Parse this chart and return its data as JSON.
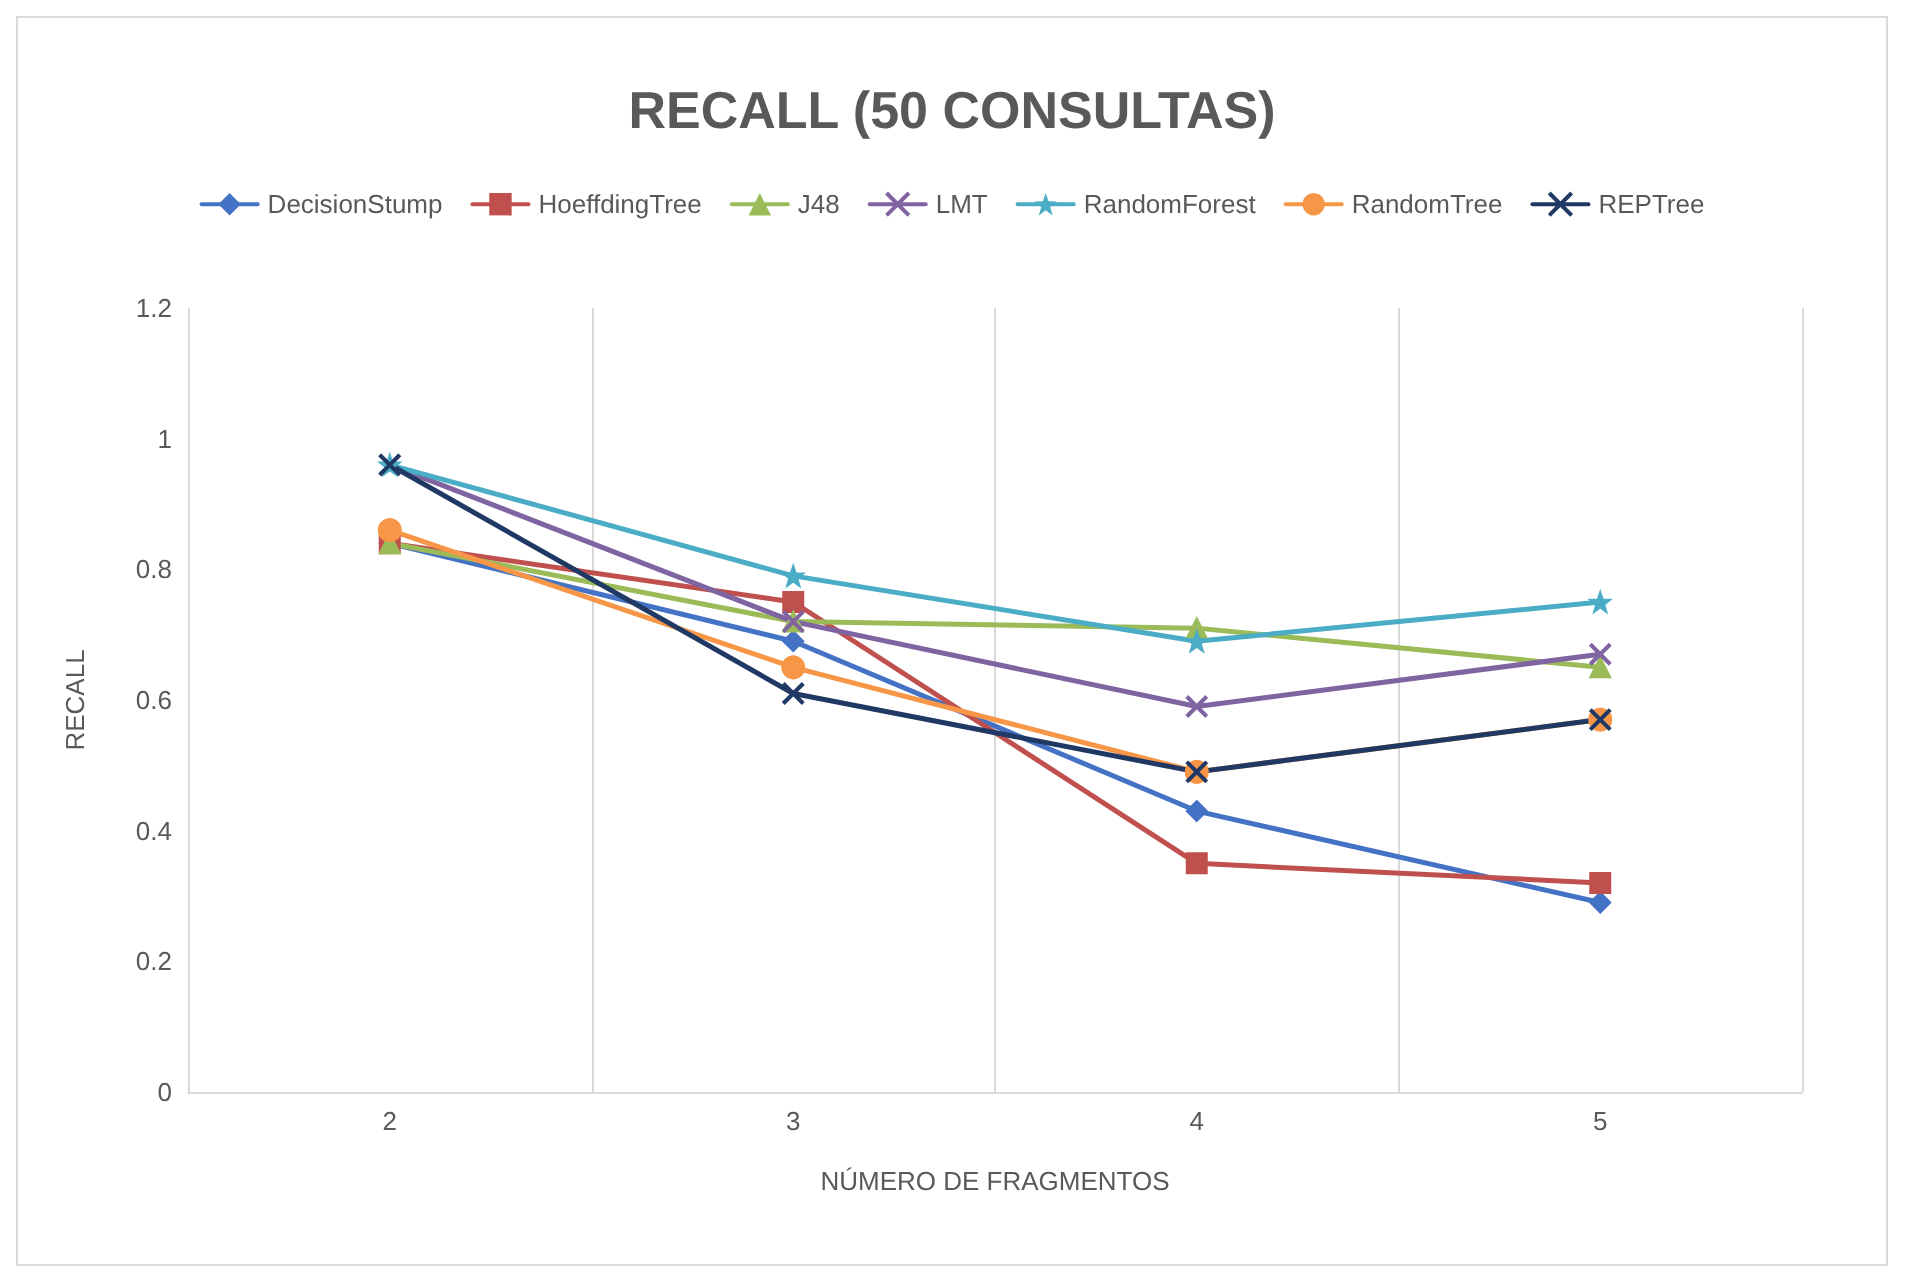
{
  "chart_data": {
    "type": "line",
    "title": "RECALL (50 CONSULTAS)",
    "xlabel": "NÚMERO DE FRAGMENTOS",
    "ylabel": "RECALL",
    "categories": [
      "2",
      "3",
      "4",
      "5"
    ],
    "ylim": [
      0,
      1.2
    ],
    "yticks": [
      0,
      0.2,
      0.4,
      0.6,
      0.8,
      1,
      1.2
    ],
    "grid": "x",
    "legend": "top",
    "series": [
      {
        "name": "DecisionStump",
        "color": "#4472c4",
        "marker": "diamond",
        "values": [
          0.84,
          0.69,
          0.43,
          0.29
        ]
      },
      {
        "name": "HoeffdingTree",
        "color": "#c0504d",
        "marker": "square",
        "values": [
          0.84,
          0.75,
          0.35,
          0.32
        ]
      },
      {
        "name": "J48",
        "color": "#9bbb59",
        "marker": "triangle",
        "values": [
          0.84,
          0.72,
          0.71,
          0.65
        ]
      },
      {
        "name": "LMT",
        "color": "#8064a2",
        "marker": "cross",
        "values": [
          0.96,
          0.72,
          0.59,
          0.67
        ]
      },
      {
        "name": "RandomForest",
        "color": "#4bacc6",
        "marker": "star",
        "values": [
          0.96,
          0.79,
          0.69,
          0.75
        ]
      },
      {
        "name": "RandomTree",
        "color": "#f79646",
        "marker": "circle",
        "values": [
          0.86,
          0.65,
          0.49,
          0.57
        ]
      },
      {
        "name": "REPTree",
        "color": "#1f3864",
        "marker": "cross",
        "values": [
          0.96,
          0.61,
          0.49,
          0.57
        ]
      }
    ]
  }
}
